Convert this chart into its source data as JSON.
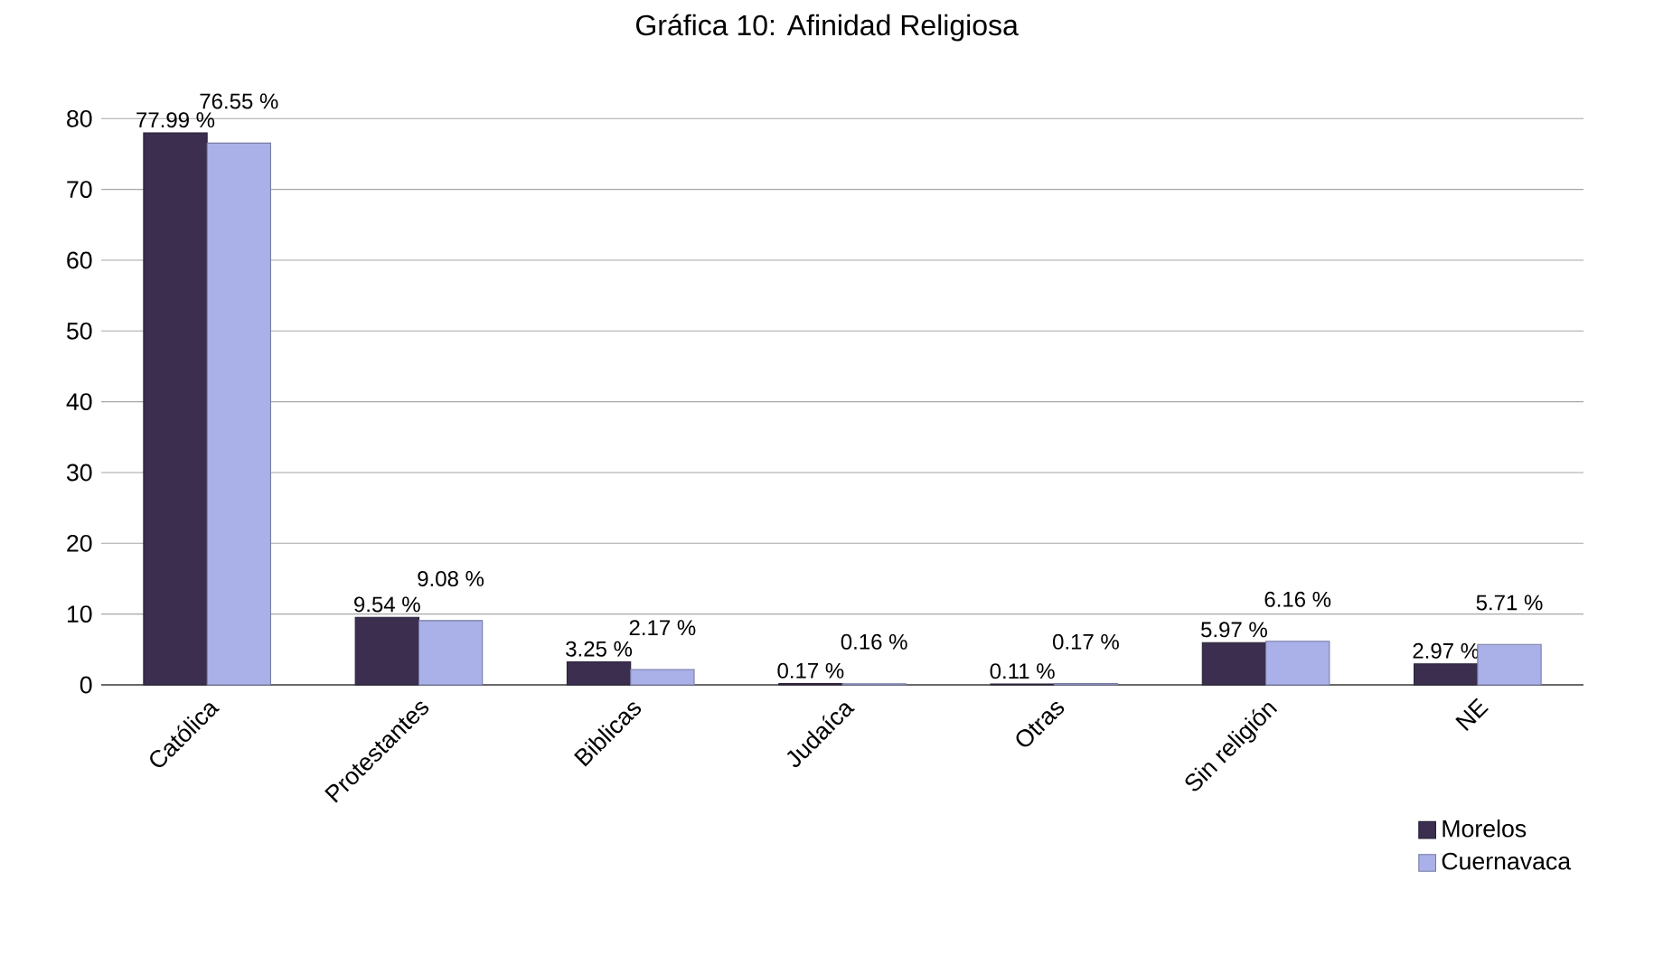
{
  "chart_data": {
    "type": "bar",
    "title": "Gráfica 10: Afinidad Religiosa",
    "categories": [
      "Católica",
      "Protestantes",
      "Biblicas",
      "Judaíca",
      "Otras",
      "Sin religión",
      "NE"
    ],
    "series": [
      {
        "name": "Morelos",
        "color": "#3b2e4f",
        "values": [
          77.99,
          9.54,
          3.25,
          0.17,
          0.11,
          5.97,
          2.97
        ],
        "value_labels": [
          "77.99 %",
          "9.54 %",
          "3.25 %",
          "0.17 %",
          "0.11 %",
          "5.97 %",
          "2.97 %"
        ]
      },
      {
        "name": "Cuernavaca",
        "color": "#aab0e8",
        "values": [
          76.55,
          9.08,
          2.17,
          0.16,
          0.17,
          6.16,
          5.71
        ],
        "value_labels": [
          "76.55 %",
          "9.08 %",
          "2.17 %",
          "0.16 %",
          "0.17 %",
          "6.16 %",
          "5.71 %"
        ]
      }
    ],
    "ylim": [
      0,
      80
    ],
    "yticks": [
      0,
      10,
      20,
      30,
      40,
      50,
      60,
      70,
      80
    ],
    "grid": "y",
    "legend": "bottom right"
  }
}
